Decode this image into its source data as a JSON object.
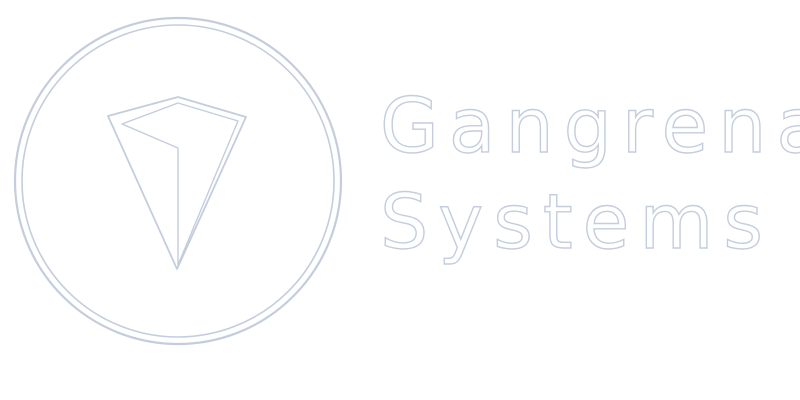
{
  "brand": {
    "name_line_1": "Gangrena",
    "name_line_2": "Systems",
    "mark": "gem-in-circle-logo"
  },
  "colors": {
    "background": "#ffffff",
    "outline": "#c4cddd"
  }
}
